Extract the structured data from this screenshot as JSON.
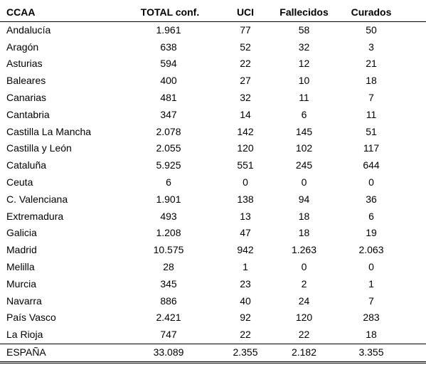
{
  "table": {
    "headers": [
      "CCAA",
      "TOTAL conf.",
      "UCI",
      "Fallecidos",
      "Curados"
    ],
    "rows": [
      [
        "Andalucía",
        "1.961",
        "77",
        "58",
        "50"
      ],
      [
        "Aragón",
        "638",
        "52",
        "32",
        "3"
      ],
      [
        "Asturias",
        "594",
        "22",
        "12",
        "21"
      ],
      [
        "Baleares",
        "400",
        "27",
        "10",
        "18"
      ],
      [
        "Canarias",
        "481",
        "32",
        "11",
        "7"
      ],
      [
        "Cantabria",
        "347",
        "14",
        "6",
        "11"
      ],
      [
        "Castilla La Mancha",
        "2.078",
        "142",
        "145",
        "51"
      ],
      [
        "Castilla y León",
        "2.055",
        "120",
        "102",
        "117"
      ],
      [
        "Cataluña",
        "5.925",
        "551",
        "245",
        "644"
      ],
      [
        "Ceuta",
        "6",
        "0",
        "0",
        "0"
      ],
      [
        "C. Valenciana",
        "1.901",
        "138",
        "94",
        "36"
      ],
      [
        "Extremadura",
        "493",
        "13",
        "18",
        "6"
      ],
      [
        "Galicia",
        "1.208",
        "47",
        "18",
        "19"
      ],
      [
        "Madrid",
        "10.575",
        "942",
        "1.263",
        "2.063"
      ],
      [
        "Melilla",
        "28",
        "1",
        "0",
        "0"
      ],
      [
        "Murcia",
        "345",
        "23",
        "2",
        "1"
      ],
      [
        "Navarra",
        "886",
        "40",
        "24",
        "7"
      ],
      [
        "País Vasco",
        "2.421",
        "92",
        "120",
        "283"
      ],
      [
        "La Rioja",
        "747",
        "22",
        "22",
        "18"
      ]
    ],
    "total": [
      "ESPAÑA",
      "33.089",
      "2.355",
      "2.182",
      "3.355"
    ]
  }
}
